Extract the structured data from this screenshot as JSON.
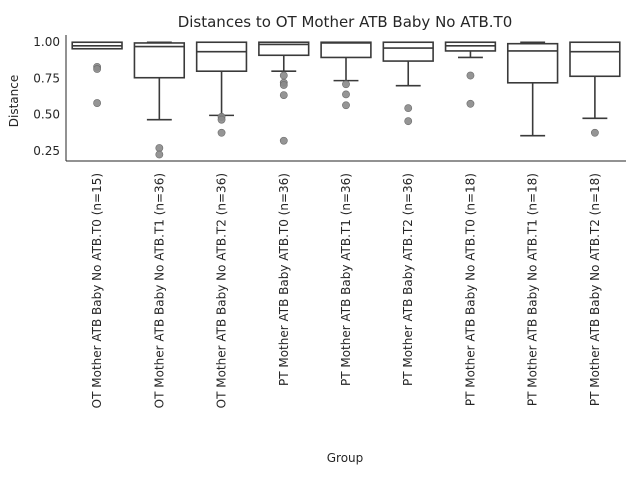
{
  "chart_data": {
    "type": "box",
    "title": "Distances to OT Mother ATB Baby No ATB.T0",
    "xlabel": "Group",
    "ylabel": "Distance",
    "ylim": [
      0.18,
      1.05
    ],
    "yticks": [
      0.25,
      0.5,
      0.75,
      1.0
    ],
    "ytick_labels": [
      "0.25",
      "0.50",
      "0.75",
      "1.00"
    ],
    "colors": {
      "box_edge": "#3a3a3a",
      "outlier": "#8a8a8a",
      "axis": "#262626"
    },
    "categories": [
      "OT Mother ATB Baby No ATB.T0 (n=15)",
      "OT Mother ATB Baby No ATB.T1 (n=36)",
      "OT Mother ATB Baby No ATB.T2 (n=36)",
      "PT Mother ATB Baby ATB.T0 (n=36)",
      "PT Mother ATB Baby ATB.T1 (n=36)",
      "PT Mother ATB Baby ATB.T2 (n=36)",
      "PT Mother ATB Baby No ATB.T0 (n=18)",
      "PT Mother ATB Baby No ATB.T1 (n=18)",
      "PT Mother ATB Baby No ATB.T2 (n=18)"
    ],
    "boxes": [
      {
        "whisker_low": 0.955,
        "q1": 0.955,
        "median": 0.975,
        "q3": 1.0,
        "whisker_high": 1.0,
        "outliers": [
          0.83,
          0.815,
          0.58
        ]
      },
      {
        "whisker_low": 0.465,
        "q1": 0.755,
        "median": 0.97,
        "q3": 0.995,
        "whisker_high": 1.0,
        "outliers": [
          0.27,
          0.225
        ]
      },
      {
        "whisker_low": 0.495,
        "q1": 0.8,
        "median": 0.935,
        "q3": 1.0,
        "whisker_high": 1.0,
        "outliers": [
          0.485,
          0.465,
          0.375
        ]
      },
      {
        "whisker_low": 0.8,
        "q1": 0.91,
        "median": 0.985,
        "q3": 1.0,
        "whisker_high": 1.0,
        "outliers": [
          0.77,
          0.72,
          0.705,
          0.635,
          0.32
        ]
      },
      {
        "whisker_low": 0.735,
        "q1": 0.895,
        "median": 0.995,
        "q3": 1.0,
        "whisker_high": 1.0,
        "outliers": [
          0.71,
          0.64,
          0.565
        ]
      },
      {
        "whisker_low": 0.7,
        "q1": 0.87,
        "median": 0.96,
        "q3": 1.0,
        "whisker_high": 1.0,
        "outliers": [
          0.545,
          0.455
        ]
      },
      {
        "whisker_low": 0.895,
        "q1": 0.94,
        "median": 0.975,
        "q3": 1.0,
        "whisker_high": 1.0,
        "outliers": [
          0.77,
          0.575
        ]
      },
      {
        "whisker_low": 0.355,
        "q1": 0.72,
        "median": 0.94,
        "q3": 0.99,
        "whisker_high": 1.0,
        "outliers": []
      },
      {
        "whisker_low": 0.475,
        "q1": 0.765,
        "median": 0.935,
        "q3": 1.0,
        "whisker_high": 1.0,
        "outliers": [
          0.375
        ]
      }
    ]
  }
}
